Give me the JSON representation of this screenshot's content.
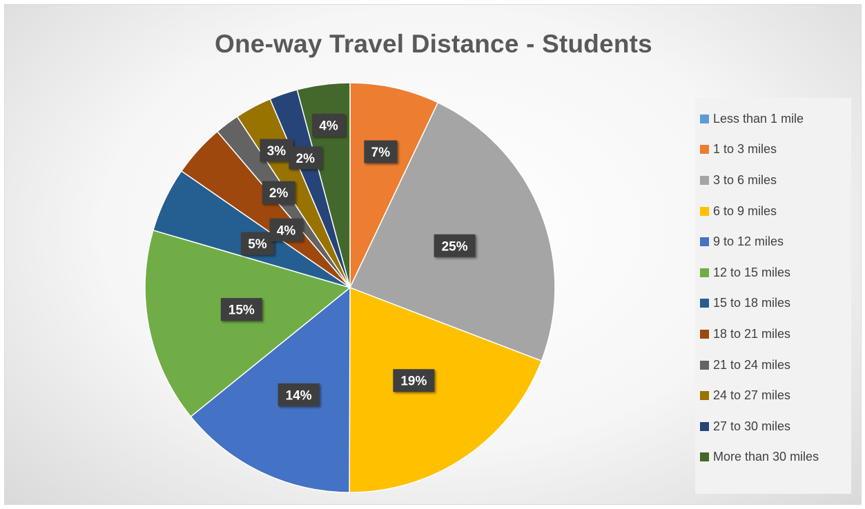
{
  "chart_data": {
    "type": "pie",
    "title": "One-way Travel Distance - Students",
    "categories": [
      "Less than 1 mile",
      "1 to 3 miles",
      "3 to 6 miles",
      "6 to 9 miles",
      "9 to 12 miles",
      "12 to 15 miles",
      "15 to 18 miles",
      "18 to 21 miles",
      "21 to 24 miles",
      "24 to 27 miles",
      "27 to 30 miles",
      "More than 30 miles"
    ],
    "values": [
      0,
      7.3,
      24.6,
      19.9,
      14.6,
      15.9,
      5.3,
      4.3,
      2.0,
      3.0,
      2.3,
      4.3
    ],
    "data_labels": [
      "",
      "7%",
      "25%",
      "19%",
      "14%",
      "15%",
      "5%",
      "4%",
      "2%",
      "3%",
      "2%",
      "4%"
    ],
    "colors": [
      "#5b9bd5",
      "#ed7d31",
      "#a5a5a5",
      "#ffc000",
      "#4472c4",
      "#70ad47",
      "#255e91",
      "#9e480e",
      "#636363",
      "#997300",
      "#264478",
      "#43682b"
    ],
    "legend_position": "right"
  }
}
